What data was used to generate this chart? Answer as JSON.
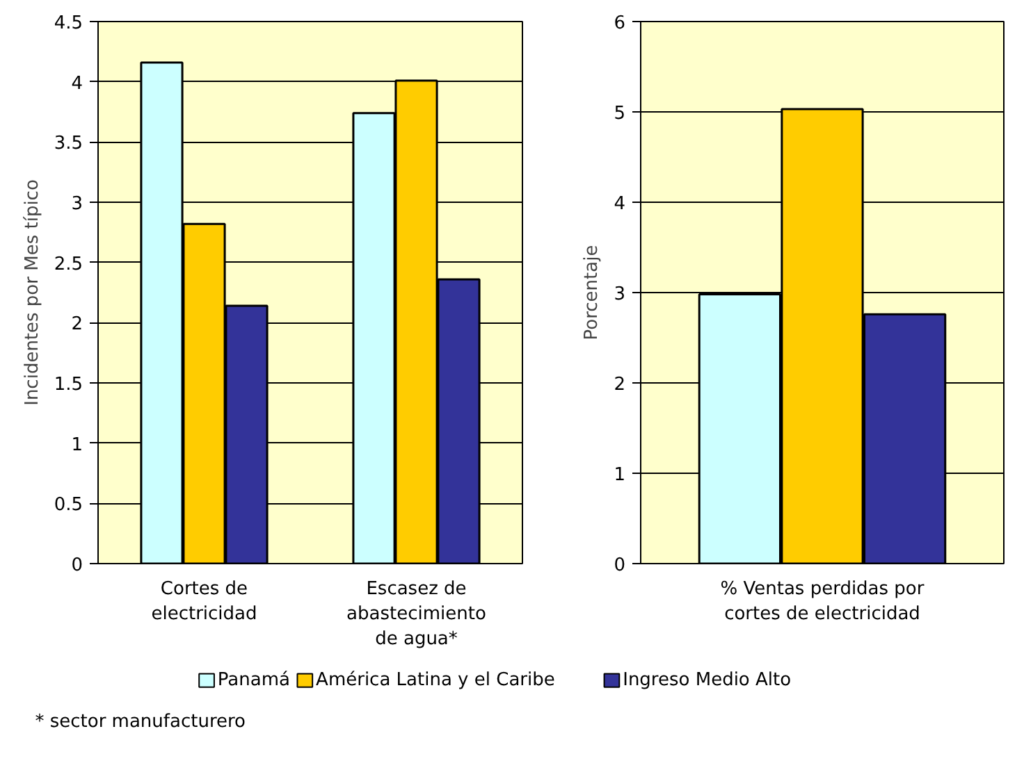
{
  "chart_data": [
    {
      "type": "bar",
      "ylabel": "Incidentes por Mes típico",
      "categories": [
        "Cortes de electricidad",
        "Escasez de abastecimiento de agua*"
      ],
      "series": [
        {
          "name": "Panamá",
          "color": "#ccffff",
          "values": [
            4.16,
            3.74
          ]
        },
        {
          "name": "América Latina y el Caribe",
          "color": "#ffcc00",
          "values": [
            2.82,
            4.01
          ]
        },
        {
          "name": "Ingreso Medio Alto",
          "color": "#333399",
          "values": [
            2.14,
            2.36
          ]
        }
      ],
      "ylim": [
        0,
        4.5
      ],
      "yticks": [
        0,
        0.5,
        1,
        1.5,
        2,
        2.5,
        3,
        3.5,
        4,
        4.5
      ],
      "grid": "y",
      "legend": "bottom",
      "annotations": [
        "*  sector manufacturero"
      ]
    },
    {
      "type": "bar",
      "ylabel": "Porcentaje",
      "categories": [
        null,
        "% Ventas perdidas por cortes de electricidad",
        null
      ],
      "values": [
        2.98,
        5.03,
        2.76
      ],
      "colors": [
        "#ccffff",
        "#ffcc00",
        "#333399"
      ],
      "ylim": [
        0,
        6
      ],
      "yticks": [
        0,
        1,
        2,
        3,
        4,
        5,
        6
      ],
      "grid": "y"
    }
  ]
}
